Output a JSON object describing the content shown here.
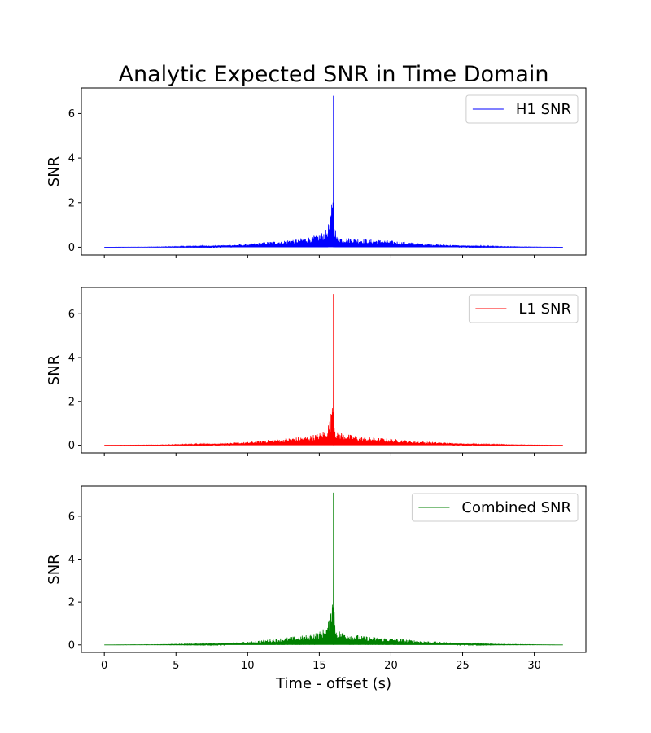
{
  "chart_data": {
    "type": "line",
    "title": "Analytic Expected SNR in Time Domain",
    "xlabel": "Time - offset (s)",
    "xlim": [
      -1.6,
      33.6
    ],
    "xticks": [
      0,
      5,
      10,
      15,
      20,
      25,
      30
    ],
    "legend_position": "top-right",
    "shared_x": true,
    "panels": [
      {
        "series_name": "H1 SNR",
        "color": "#0000ff",
        "ylabel": "SNR",
        "ylim": [
          -0.35,
          7.15
        ],
        "yticks": [
          0,
          2,
          4,
          6
        ],
        "envelope": {
          "x": [
            0,
            4,
            8,
            10,
            12,
            14,
            15,
            15.5,
            15.8,
            15.95,
            16.0,
            16.05,
            16.2,
            16.5,
            17,
            18,
            20,
            22,
            25,
            28,
            32
          ],
          "y": [
            0,
            0.02,
            0.08,
            0.15,
            0.28,
            0.42,
            0.58,
            0.8,
            1.4,
            3.2,
            6.8,
            1.2,
            0.5,
            0.45,
            0.42,
            0.38,
            0.3,
            0.18,
            0.08,
            0.03,
            0
          ]
        }
      },
      {
        "series_name": "L1 SNR",
        "color": "#ff0000",
        "ylabel": "SNR",
        "ylim": [
          -0.35,
          7.2
        ],
        "yticks": [
          0,
          2,
          4,
          6
        ],
        "envelope": {
          "x": [
            0,
            4,
            8,
            10,
            12,
            14,
            15,
            15.5,
            15.8,
            15.95,
            16.0,
            16.05,
            16.2,
            16.5,
            17,
            18,
            20,
            22,
            25,
            28,
            32
          ],
          "y": [
            0,
            0.02,
            0.08,
            0.15,
            0.28,
            0.4,
            0.55,
            0.75,
            1.3,
            3.0,
            6.9,
            1.1,
            0.55,
            0.6,
            0.5,
            0.38,
            0.3,
            0.18,
            0.08,
            0.03,
            0
          ]
        }
      },
      {
        "series_name": "Combined SNR",
        "color": "#008000",
        "ylabel": "SNR",
        "ylim": [
          -0.35,
          7.4
        ],
        "yticks": [
          0,
          2,
          4,
          6
        ],
        "envelope": {
          "x": [
            0,
            4,
            8,
            10,
            12,
            14,
            15,
            15.5,
            15.8,
            15.95,
            16.0,
            16.05,
            16.2,
            16.5,
            17,
            18,
            20,
            22,
            25,
            28,
            32
          ],
          "y": [
            0,
            0.02,
            0.08,
            0.15,
            0.3,
            0.45,
            0.62,
            0.85,
            1.5,
            3.4,
            7.1,
            1.3,
            0.7,
            0.65,
            0.55,
            0.42,
            0.32,
            0.2,
            0.09,
            0.03,
            0
          ]
        }
      }
    ]
  }
}
